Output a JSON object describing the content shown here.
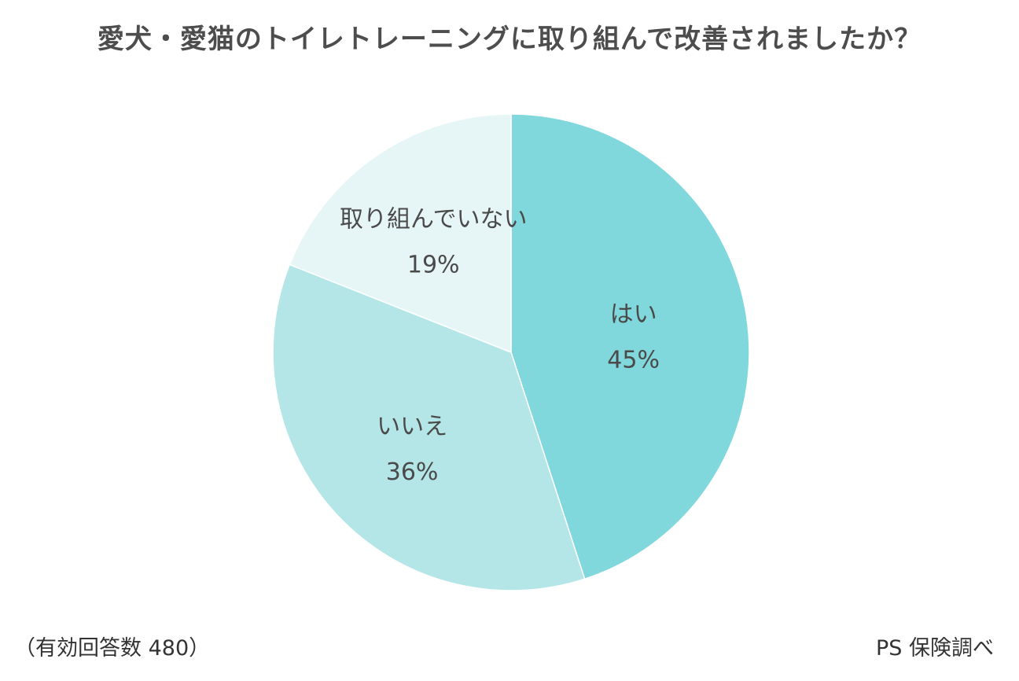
{
  "chart_data": {
    "type": "pie",
    "title": "愛犬・愛猫のトイレトレーニングに取り組んで改善されましたか？",
    "slices": [
      {
        "label": "はい",
        "value": 45,
        "value_label": "45%",
        "color": "#80d8dc"
      },
      {
        "label": "いいえ",
        "value": 36,
        "value_label": "36%",
        "color": "#b4e6e8"
      },
      {
        "label": "取り組んでいない",
        "value": 19,
        "value_label": "19%",
        "color": "#e6f5f6"
      }
    ],
    "start_angle": "12 o'clock",
    "direction": "clockwise"
  },
  "footnote": {
    "sample": "（有効回答数 480）",
    "source": "PS 保険調べ"
  }
}
